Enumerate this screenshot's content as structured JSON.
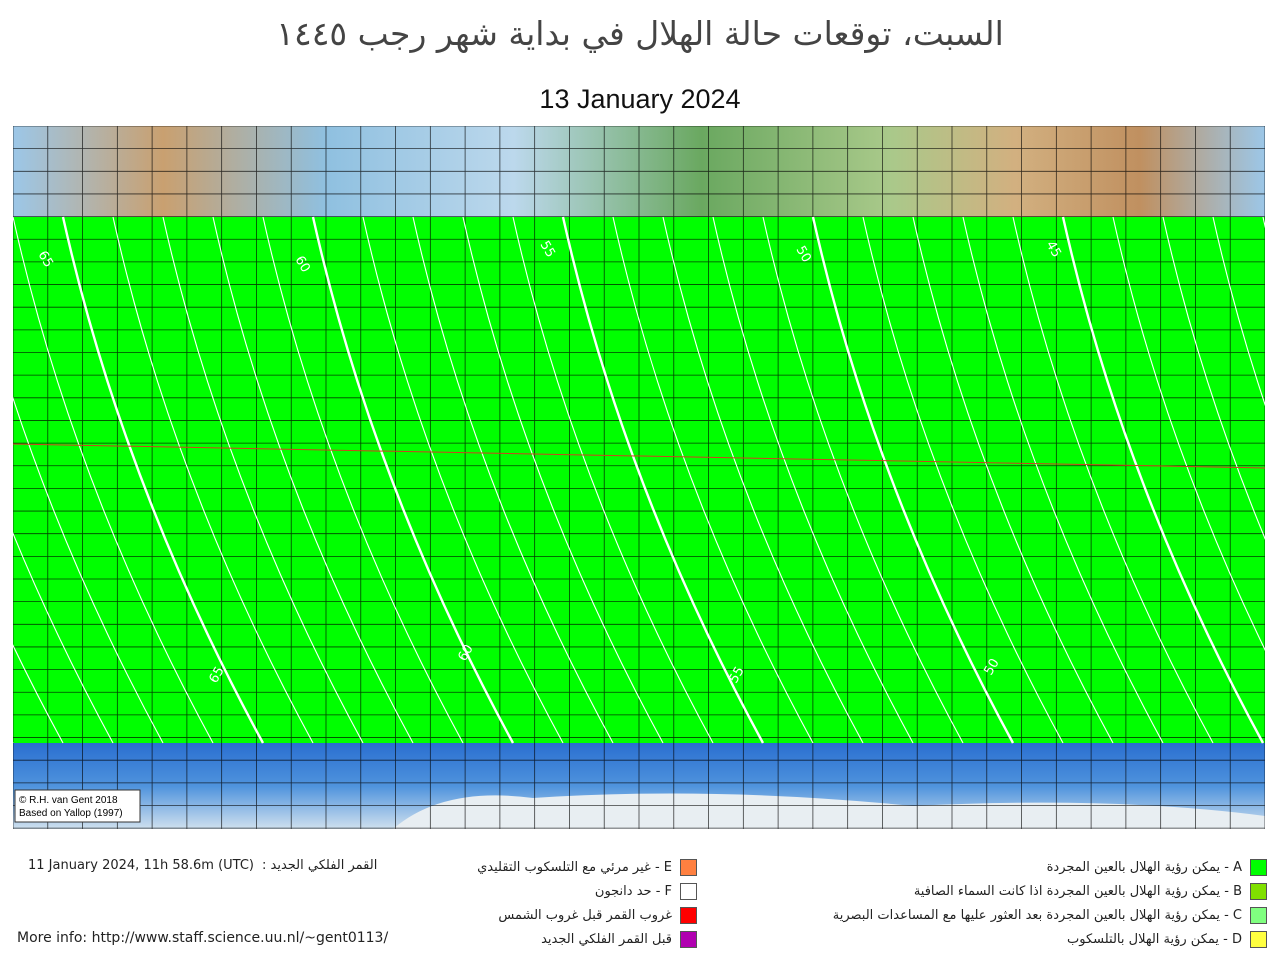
{
  "header": {
    "title": "السبت، توقعات حالة الهلال في بداية شهر رجب ١٤٤٥",
    "date": "13 January 2024"
  },
  "map": {
    "credits": [
      "© R.H. van Gent 2018",
      "Based on Yallop (1997)"
    ],
    "contour_labels_top": [
      "65",
      "60",
      "55",
      "50",
      "45"
    ],
    "contour_labels_bottom": [
      "65",
      "60",
      "55",
      "50"
    ]
  },
  "legend_right": [
    {
      "text": "A - يمكن رؤية الهلال بالعين المجردة",
      "color": "#00ff00"
    },
    {
      "text": "B - يمكن رؤية الهلال بالعين المجردة اذا كانت السماء الصافية",
      "color": "#80e000"
    },
    {
      "text": "C - يمكن رؤية الهلال بالعين المجردة بعد العثور عليها مع المساعدات البصرية",
      "color": "#80ff80"
    },
    {
      "text": "D - يمكن رؤية الهلال بالتلسكوب",
      "color": "#ffff40"
    }
  ],
  "legend_middle": [
    {
      "text": "E - غير مرئي مع التلسكوب التقليدي",
      "color": "#ff8040"
    },
    {
      "text": "F - حد دانجون",
      "color": "#ffffff"
    },
    {
      "text": "غروب القمر قبل غروب الشمس",
      "color": "#ff0000"
    },
    {
      "text": "قبل القمر  الفلكي الجديد",
      "color": "#b000b0"
    }
  ],
  "new_moon": {
    "label": "القمر الفلكي الجديد :",
    "time": "11 January 2024, 11h 58.6m (UTC)"
  },
  "more_info": "More info: http://www.staff.science.uu.nl/~gent0113/"
}
